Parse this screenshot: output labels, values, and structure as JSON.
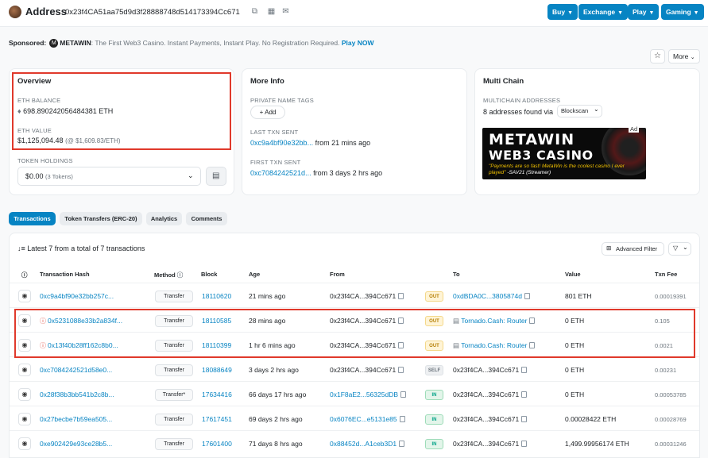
{
  "header": {
    "title": "Address",
    "address": "0x23f4CA51aa75d9d3f28888748d514173394Cc671",
    "buttons": [
      "Buy",
      "Exchange",
      "Play",
      "Gaming"
    ]
  },
  "sponsored": {
    "label": "Sponsored:",
    "brand": "METAWIN",
    "text": ": The First Web3 Casino. Instant Payments, Instant Play. No Registration Required.",
    "cta": "Play NOW"
  },
  "actions": {
    "more_label": "More"
  },
  "overview": {
    "title": "Overview",
    "eth_balance_label": "ETH BALANCE",
    "eth_balance": "698.890242056484381 ETH",
    "eth_value_label": "ETH VALUE",
    "eth_value": "$1,125,094.48",
    "eth_price": "(@ $1,609.83/ETH)",
    "token_holdings_label": "TOKEN HOLDINGS",
    "token_value": "$0.00",
    "token_count": "(3 Tokens)"
  },
  "more_info": {
    "title": "More Info",
    "private_tags_label": "PRIVATE NAME TAGS",
    "add_label": "+ Add",
    "last_txn_label": "LAST TXN SENT",
    "last_txn_hash": "0xc9a4bf90e32bb...",
    "last_txn_time": "from 21 mins ago",
    "first_txn_label": "FIRST TXN SENT",
    "first_txn_hash": "0xc7084242521d...",
    "first_txn_time": "from 3 days 2 hrs ago"
  },
  "multi_chain": {
    "title": "Multi Chain",
    "label": "MULTICHAIN ADDRESSES",
    "found_text": "8 addresses found via",
    "source": "Blockscan"
  },
  "ad": {
    "line1": "METAWIN",
    "line2": "WEB3 CASINO",
    "quote": "\"Payments are so fast! MetaWin is the coolest casino I ever played\"",
    "author": "-SAV21 (Streamer)",
    "tag": "Ad"
  },
  "tabs": [
    "Transactions",
    "Token Transfers (ERC-20)",
    "Analytics",
    "Comments"
  ],
  "table": {
    "summary": "Latest 7 from a total of 7 transactions",
    "advanced_filter": "Advanced Filter",
    "headers": {
      "hash": "Transaction Hash",
      "method": "Method",
      "block": "Block",
      "age": "Age",
      "from": "From",
      "to": "To",
      "value": "Value",
      "fee": "Txn Fee"
    },
    "rows": [
      {
        "hash": "0xc9a4bf90e32bb257c...",
        "method": "Transfer",
        "block": "18110620",
        "age": "21 mins ago",
        "from": "0x23f4CA...394Cc671",
        "dir": "OUT",
        "to": "0xdBDA0C...3805874d",
        "value": "801 ETH",
        "fee": "0.00019391"
      },
      {
        "hash": "0x5231088e33b2a834f...",
        "method": "Transfer",
        "block": "18110585",
        "age": "28 mins ago",
        "from": "0x23f4CA...394Cc671",
        "dir": "OUT",
        "to": "Tornado.Cash: Router",
        "value": "0 ETH",
        "fee": "0.105"
      },
      {
        "hash": "0x13f40b28ff162c8b0...",
        "method": "Transfer",
        "block": "18110399",
        "age": "1 hr 6 mins ago",
        "from": "0x23f4CA...394Cc671",
        "dir": "OUT",
        "to": "Tornado.Cash: Router",
        "value": "0 ETH",
        "fee": "0.0021"
      },
      {
        "hash": "0xc7084242521d58e0...",
        "method": "Transfer",
        "block": "18088649",
        "age": "3 days 2 hrs ago",
        "from": "0x23f4CA...394Cc671",
        "dir": "SELF",
        "to": "0x23f4CA...394Cc671",
        "value": "0 ETH",
        "fee": "0.00231"
      },
      {
        "hash": "0x28f38b3bb541b2c8b...",
        "method": "Transfer*",
        "block": "17634416",
        "age": "66 days 17 hrs ago",
        "from": "0x1F8aE2...56325dDB",
        "dir": "IN",
        "to": "0x23f4CA...394Cc671",
        "value": "0 ETH",
        "fee": "0.00053785"
      },
      {
        "hash": "0x27becbe7b59ea505...",
        "method": "Transfer",
        "block": "17617451",
        "age": "69 days 2 hrs ago",
        "from": "0x6076EC...e5131e85",
        "dir": "IN",
        "to": "0x23f4CA...394Cc671",
        "value": "0.00028422 ETH",
        "fee": "0.00028769"
      },
      {
        "hash": "0xe902429e93ce28b5...",
        "method": "Transfer",
        "block": "17601400",
        "age": "71 days 8 hrs ago",
        "from": "0x88452d...A1ceb3D1",
        "dir": "IN",
        "to": "0x23f4CA...394Cc671",
        "value": "1,499.99956174 ETH",
        "fee": "0.00031246"
      }
    ]
  },
  "colors": {
    "accent": "#0784c3",
    "highlight": "#e0392b"
  }
}
